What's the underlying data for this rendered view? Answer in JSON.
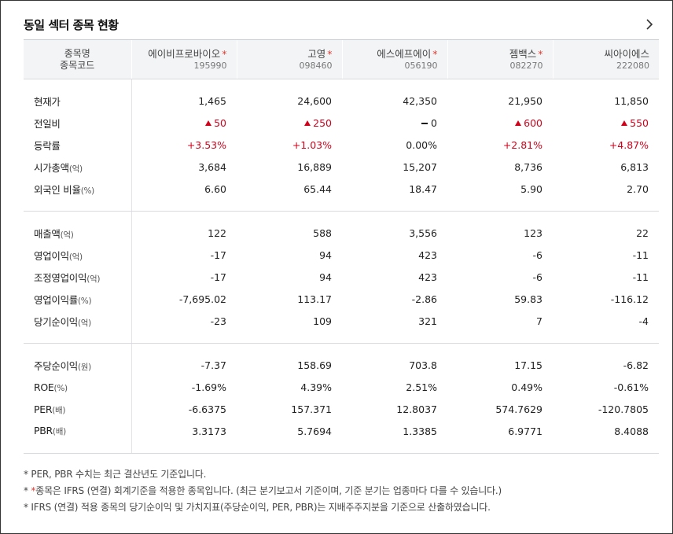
{
  "panel": {
    "title": "동일 섹터 종목 현황"
  },
  "header": {
    "label1": "종목명",
    "label2": "종목코드"
  },
  "companies": [
    {
      "name": "에이비프로바이오",
      "code": "195990"
    },
    {
      "name": "고영",
      "code": "098460"
    },
    {
      "name": "에스에프에이",
      "code": "056190"
    },
    {
      "name": "젬백스",
      "code": "082270"
    },
    {
      "name": "씨아이에스",
      "code": "222080"
    }
  ],
  "rows": {
    "price": {
      "label": "현재가",
      "unit": "",
      "values": [
        "1,465",
        "24,600",
        "42,350",
        "21,950",
        "11,850"
      ]
    },
    "change": {
      "label": "전일비",
      "unit": "",
      "values": [
        "50",
        "250",
        "0",
        "600",
        "550"
      ],
      "dirs": [
        "up",
        "up",
        "flat",
        "up",
        "up"
      ]
    },
    "rate": {
      "label": "등락률",
      "unit": "",
      "values": [
        "+3.53%",
        "+1.03%",
        "0.00%",
        "+2.81%",
        "+4.87%"
      ]
    },
    "mcap": {
      "label": "시가총액",
      "unit": "(억)",
      "values": [
        "3,684",
        "16,889",
        "15,207",
        "8,736",
        "6,813"
      ]
    },
    "foreign": {
      "label": "외국인 비율",
      "unit": "(%)",
      "values": [
        "6.60",
        "65.44",
        "18.47",
        "5.90",
        "2.70"
      ]
    },
    "sales": {
      "label": "매출액",
      "unit": "(억)",
      "values": [
        "122",
        "588",
        "3,556",
        "123",
        "22"
      ]
    },
    "op": {
      "label": "영업이익",
      "unit": "(억)",
      "values": [
        "-17",
        "94",
        "423",
        "-6",
        "-11"
      ]
    },
    "adjop": {
      "label": "조정영업이익",
      "unit": "(억)",
      "values": [
        "-17",
        "94",
        "423",
        "-6",
        "-11"
      ]
    },
    "opm": {
      "label": "영업이익률",
      "unit": "(%)",
      "values": [
        "-7,695.02",
        "113.17",
        "-2.86",
        "59.83",
        "-116.12"
      ]
    },
    "ni": {
      "label": "당기순이익",
      "unit": "(억)",
      "values": [
        "-23",
        "109",
        "321",
        "7",
        "-4"
      ]
    },
    "eps": {
      "label": "주당순이익",
      "unit": "(원)",
      "values": [
        "-7.37",
        "158.69",
        "703.8",
        "17.15",
        "-6.82"
      ]
    },
    "roe": {
      "label": "ROE",
      "unit": "(%)",
      "values": [
        "-1.69%",
        "4.39%",
        "2.51%",
        "0.49%",
        "-0.61%"
      ]
    },
    "per": {
      "label": "PER",
      "unit": "(배)",
      "values": [
        "-6.6375",
        "157.371",
        "12.8037",
        "574.7629",
        "-120.7805"
      ]
    },
    "pbr": {
      "label": "PBR",
      "unit": "(배)",
      "values": [
        "3.3173",
        "5.7694",
        "1.3385",
        "6.9771",
        "8.4088"
      ]
    }
  },
  "notes": {
    "n1": "* PER, PBR 수치는 최근 결산년도 기준입니다.",
    "n2_prefix": "* ",
    "n2_star": "*",
    "n2_rest": "종목은 IFRS (연결) 회계기준을 적용한 종목입니다. (최근 분기보고서 기준이며, 기준 분기는 업종마다 다를 수 있습니다.)",
    "n3": "* IFRS (연결) 적용 종목의 당기순이익 및 가치지표(주당순이익, PER, PBR)는 지배주주지분을 기준으로 산출하였습니다."
  },
  "colors": {
    "up": "#d0021b",
    "star": "#e03c31",
    "header_bg": "#f3f4f6"
  },
  "icons": {
    "more": "chevron-right-icon"
  }
}
